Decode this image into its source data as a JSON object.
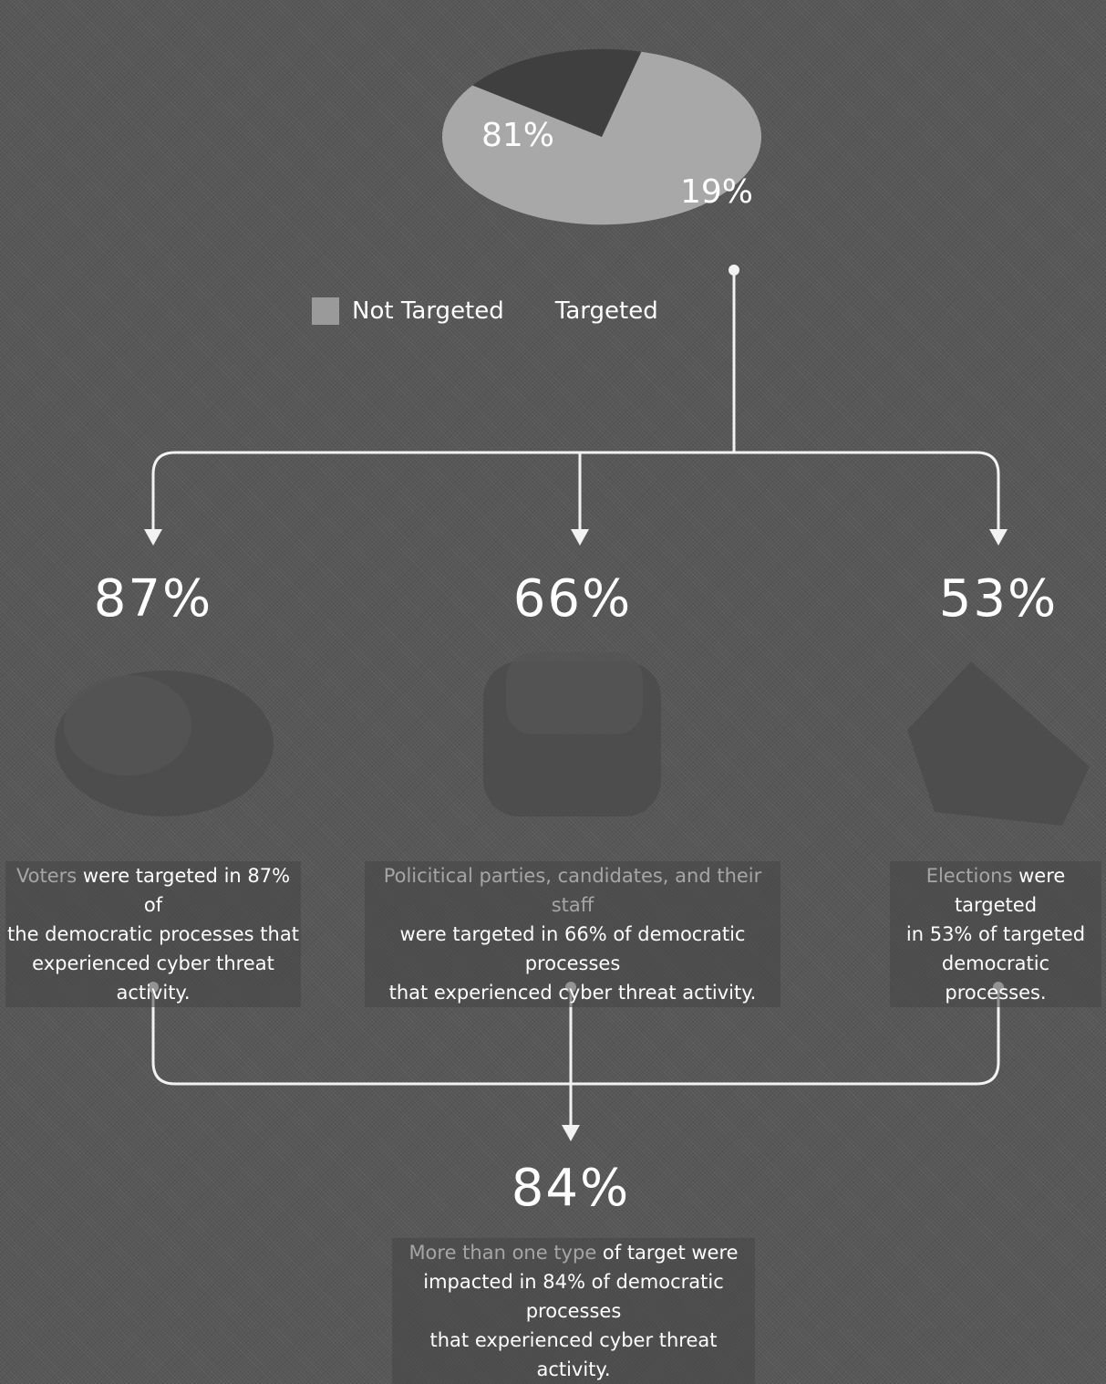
{
  "chart_data": {
    "type": "pie",
    "slices": [
      {
        "label": "Not Targeted",
        "value": 81,
        "display": "81%",
        "color": "#a8a8a8"
      },
      {
        "label": "Targeted",
        "value": 19,
        "display": "19%",
        "color": "#3f3f3f"
      }
    ]
  },
  "legend": {
    "items": [
      {
        "label": "Not Targeted"
      },
      {
        "label": "Targeted"
      }
    ]
  },
  "targets": [
    {
      "pct": "87%",
      "caption_hl": "Voters",
      "caption_line1": " were targeted in 87% of",
      "caption_line2": "the democratic processes that",
      "caption_line3": "experienced cyber threat activity."
    },
    {
      "pct": "66%",
      "caption_hl": "Policitical parties, candidates, and their staff",
      "caption_line1": "",
      "caption_line2": "were targeted in 66% of democratic processes",
      "caption_line3": "that experienced cyber threat activity."
    },
    {
      "pct": "53%",
      "caption_hl": "Elections",
      "caption_line1": " were targeted",
      "caption_line2": "in 53% of targeted",
      "caption_line3": "democratic processes."
    }
  ],
  "summary": {
    "pct": "84%",
    "caption_hl": "More than one type",
    "caption_line1": " of target were",
    "caption_line2": "impacted in 84% of democratic processes",
    "caption_line3": "that experienced cyber threat activity."
  }
}
